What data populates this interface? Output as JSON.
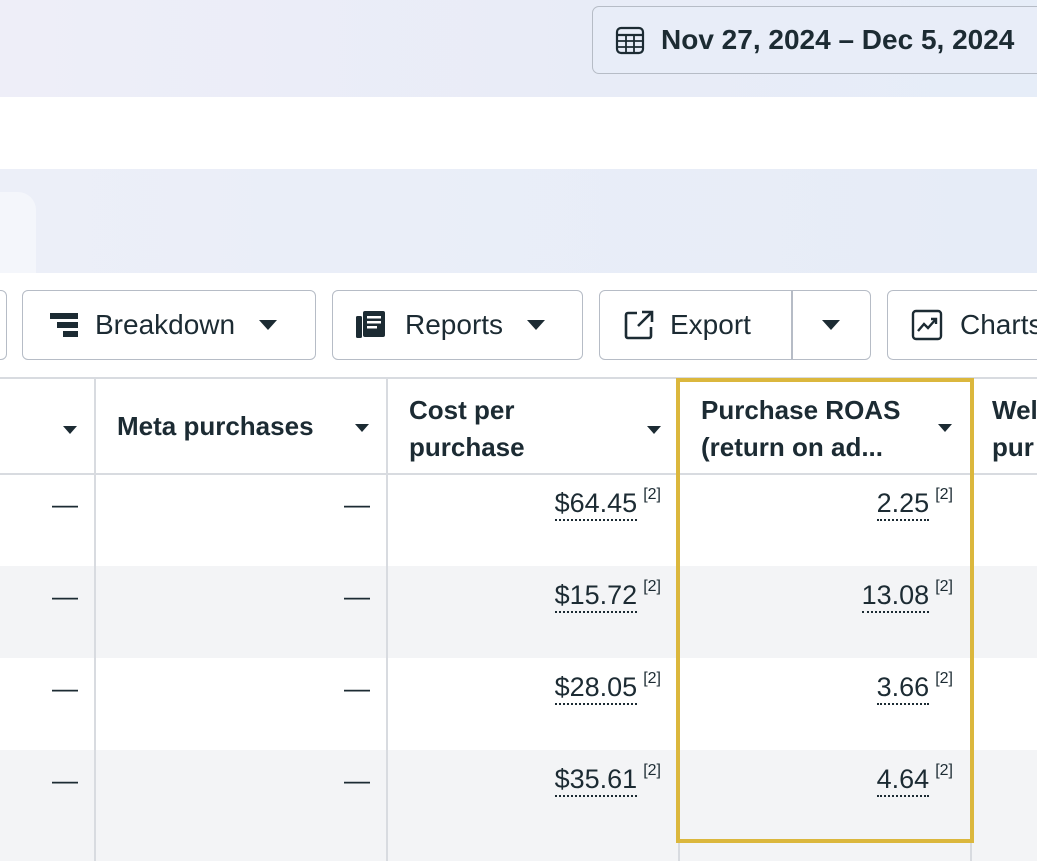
{
  "date_range": {
    "label": "Nov 27, 2024 – Dec 5, 2024",
    "icon": "calendar-icon"
  },
  "toolbar": {
    "breakdown_label": "Breakdown",
    "reports_label": "Reports",
    "export_label": "Export",
    "charts_label": "Charts"
  },
  "columns": {
    "meta_purchases": "Meta purchases",
    "cost_per_purchase_line1": "Cost per",
    "cost_per_purchase_line2": "purchase",
    "purchase_roas_line1": "Purchase ROAS",
    "purchase_roas_line2": "(return on ad...",
    "cutoff_line1": "Wel",
    "cutoff_line2": "pur"
  },
  "rows": [
    {
      "col1": "—",
      "meta_purchases": "—",
      "cost_per_purchase": "$64.45",
      "cost_ref": "[2]",
      "roas": "2.25",
      "roas_ref": "[2]"
    },
    {
      "col1": "—",
      "meta_purchases": "—",
      "cost_per_purchase": "$15.72",
      "cost_ref": "[2]",
      "roas": "13.08",
      "roas_ref": "[2]"
    },
    {
      "col1": "—",
      "meta_purchases": "—",
      "cost_per_purchase": "$28.05",
      "cost_ref": "[2]",
      "roas": "3.66",
      "roas_ref": "[2]"
    },
    {
      "col1": "—",
      "meta_purchases": "—",
      "cost_per_purchase": "$35.61",
      "cost_ref": "[2]",
      "roas": "4.64",
      "roas_ref": "[2]"
    }
  ],
  "colors": {
    "highlight": "#dbb73d",
    "text": "#1c2b33",
    "row_alt": "#f3f4f6"
  }
}
